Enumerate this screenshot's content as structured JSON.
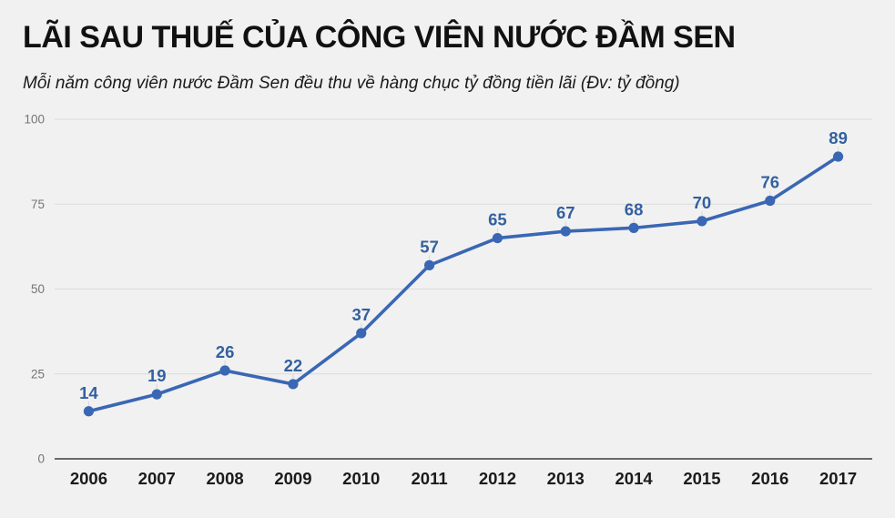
{
  "header": {
    "title": "LÃI SAU THUẾ CỦA CÔNG VIÊN NƯỚC ĐẦM SEN",
    "subtitle": "Mỗi năm công viên nước Đầm Sen đều thu về hàng chục tỷ đồng tiền lãi (Đv: tỷ đồng)"
  },
  "chart_data": {
    "type": "line",
    "title": "LÃI SAU THUẾ CỦA CÔNG VIÊN NƯỚC ĐẦM SEN",
    "subtitle": "Mỗi năm công viên nước Đầm Sen đều thu về hàng chục tỷ đồng tiền lãi (Đv: tỷ đồng)",
    "categories": [
      "2006",
      "2007",
      "2008",
      "2009",
      "2010",
      "2011",
      "2012",
      "2013",
      "2014",
      "2015",
      "2016",
      "2017"
    ],
    "values": [
      14,
      19,
      26,
      22,
      37,
      57,
      65,
      67,
      68,
      70,
      76,
      89
    ],
    "data_labels": [
      "14",
      "19",
      "26",
      "22",
      "37",
      "57",
      "65",
      "67",
      "68",
      "70",
      "76",
      "89"
    ],
    "xlabel": "",
    "ylabel": "",
    "unit": "tỷ đồng",
    "ylim": [
      0,
      100
    ],
    "yticks": [
      0,
      25,
      50,
      75,
      100
    ],
    "grid": true,
    "legend": "none",
    "show_markers": true,
    "show_data_labels": true,
    "colors": {
      "background": "#f1f1f1",
      "line": "#3a67b4",
      "marker": "#3a67b4",
      "data_label": "#33609f",
      "gridline": "#dbdbdb",
      "axis_line": "#3c3c3c",
      "y_tick_label": "#757575",
      "x_tick_label": "#1b1b1b",
      "leader_line": "#d8d8d8",
      "title": "#111111",
      "subtitle": "#1a1a1a"
    }
  }
}
